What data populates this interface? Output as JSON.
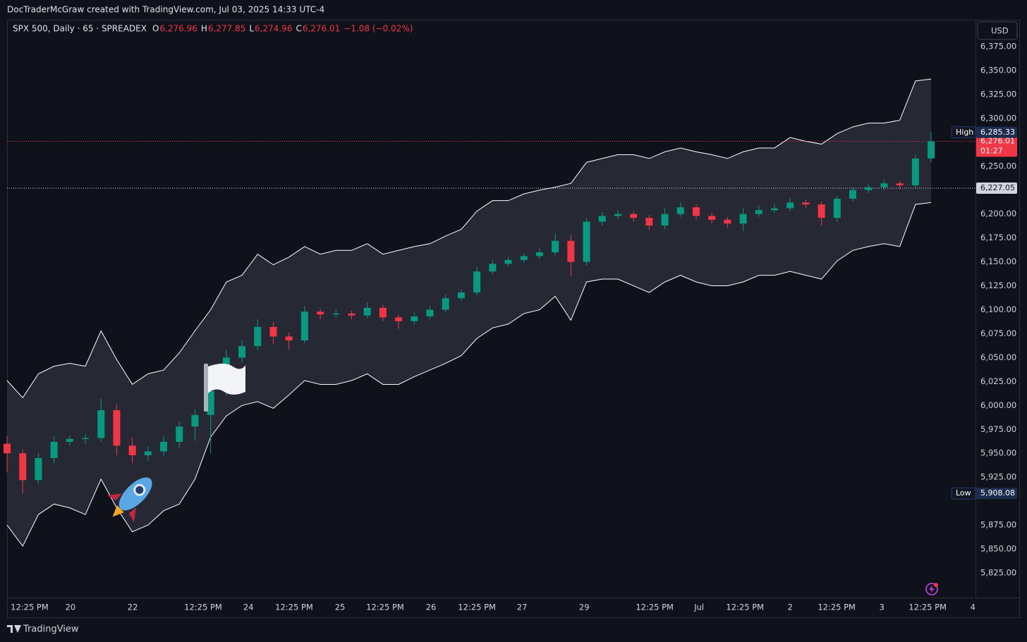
{
  "header": {
    "credit": "DocTraderMcGraw created with TradingView.com, Jul 03, 2025 14:33 UTC-4",
    "symbol": "SPX 500, Daily · 65 · SPREADEX",
    "ohlc": [
      {
        "key": "O",
        "text": "6,276.96"
      },
      {
        "key": "H",
        "text": "6,277.85"
      },
      {
        "key": "L",
        "text": "6,274.96"
      },
      {
        "key": "C",
        "text": "6,276.01"
      }
    ],
    "change": "−1.08 (−0.02%)",
    "currency": "USD"
  },
  "footer": {
    "brand": "TradingView"
  },
  "chart_data": {
    "type": "candlestick",
    "up_color": "#089981",
    "down_color": "#f23645",
    "band_color": "#ffffff",
    "xlim": [
      0,
      61.7
    ],
    "xticks": [
      {
        "value": 1.44,
        "label": "12:25 PM"
      },
      {
        "value": 4.05,
        "label": "20"
      },
      {
        "value": 8.02,
        "label": "22"
      },
      {
        "value": 12.52,
        "label": "12:25 PM"
      },
      {
        "value": 15.41,
        "label": "24"
      },
      {
        "value": 18.33,
        "label": "12:25 PM"
      },
      {
        "value": 21.26,
        "label": "25"
      },
      {
        "value": 24.14,
        "label": "12:25 PM"
      },
      {
        "value": 27.07,
        "label": "26"
      },
      {
        "value": 30.0,
        "label": "12:25 PM"
      },
      {
        "value": 32.88,
        "label": "27"
      },
      {
        "value": 36.85,
        "label": "29"
      },
      {
        "value": 41.35,
        "label": "12:25 PM"
      },
      {
        "value": 44.19,
        "label": "Jul"
      },
      {
        "value": 47.12,
        "label": "12:25 PM"
      },
      {
        "value": 50.0,
        "label": "2"
      },
      {
        "value": 52.97,
        "label": "12:25 PM"
      },
      {
        "value": 55.86,
        "label": "3"
      },
      {
        "value": 58.78,
        "label": "12:25 PM"
      },
      {
        "value": 61.67,
        "label": "4"
      }
    ],
    "ylim": [
      5825,
      6375
    ],
    "yticks": [
      {
        "value": 6375,
        "label": "6,375.00"
      },
      {
        "value": 6350,
        "label": "6,350.00"
      },
      {
        "value": 6325,
        "label": "6,325.00"
      },
      {
        "value": 6300,
        "label": "6,300.00"
      },
      {
        "value": 6250,
        "label": "6,250.00"
      },
      {
        "value": 6200,
        "label": "6,200.00"
      },
      {
        "value": 6175,
        "label": "6,175.00"
      },
      {
        "value": 6150,
        "label": "6,150.00"
      },
      {
        "value": 6125,
        "label": "6,125.00"
      },
      {
        "value": 6100,
        "label": "6,100.00"
      },
      {
        "value": 6075,
        "label": "6,075.00"
      },
      {
        "value": 6050,
        "label": "6,050.00"
      },
      {
        "value": 6025,
        "label": "6,025.00"
      },
      {
        "value": 6000,
        "label": "6,000.00"
      },
      {
        "value": 5975,
        "label": "5,975.00"
      },
      {
        "value": 5950,
        "label": "5,950.00"
      },
      {
        "value": 5925,
        "label": "5,925.00"
      },
      {
        "value": 5875,
        "label": "5,875.00"
      },
      {
        "value": 5850,
        "label": "5,850.00"
      },
      {
        "value": 5825,
        "label": "5,825.00"
      }
    ],
    "grid": false,
    "open": [
      5960,
      5950,
      5922,
      5945,
      5962,
      5965,
      5966,
      5995,
      5958,
      5948,
      5952,
      5962,
      5978,
      5990,
      6015,
      6050,
      6062,
      6082,
      6072,
      6068,
      6098,
      6095,
      6096,
      6094,
      6102,
      6092,
      6088,
      6093,
      6100,
      6112,
      6118,
      6140,
      6148,
      6152,
      6156,
      6160,
      6172,
      6150,
      6192,
      6198,
      6200,
      6196,
      6188,
      6200,
      6207,
      6198,
      6194,
      6190,
      6200,
      6204,
      6206,
      6212,
      6210,
      6196,
      6216,
      6225,
      6228,
      6232,
      6230,
      6258
    ],
    "high": [
      5968,
      5954,
      5950,
      5968,
      5968,
      5970,
      6007,
      6001,
      5966,
      5957,
      5968,
      5983,
      5996,
      6020,
      6058,
      6068,
      6090,
      6087,
      6076,
      6104,
      6101,
      6100,
      6099,
      6108,
      6105,
      6095,
      6097,
      6104,
      6116,
      6121,
      6145,
      6152,
      6155,
      6159,
      6165,
      6180,
      6178,
      6196,
      6202,
      6204,
      6203,
      6199,
      6206,
      6212,
      6210,
      6202,
      6197,
      6206,
      6209,
      6210,
      6217,
      6215,
      6213,
      6219,
      6228,
      6231,
      6236,
      6235,
      6262,
      6285.33
    ],
    "low": [
      5930,
      5908.08,
      5918,
      5940,
      5958,
      5960,
      5962,
      5948,
      5940,
      5942,
      5947,
      5956,
      5963,
      5950,
      6010,
      6045,
      6058,
      6064,
      6058,
      6065,
      6090,
      6092,
      6090,
      6091,
      6088,
      6080,
      6085,
      6090,
      6097,
      6109,
      6115,
      6137,
      6145,
      6149,
      6153,
      6157,
      6135,
      6146,
      6188,
      6195,
      6192,
      6183,
      6184,
      6197,
      6194,
      6190,
      6186,
      6182,
      6197,
      6201,
      6203,
      6206,
      6188,
      6192,
      6213,
      6222,
      6225,
      6226,
      6227,
      6254
    ],
    "close": [
      5950,
      5922,
      5945,
      5962,
      5965,
      5966,
      5995,
      5958,
      5948,
      5952,
      5962,
      5978,
      5990,
      6015,
      6050,
      6062,
      6082,
      6072,
      6068,
      6098,
      6095,
      6096,
      6094,
      6102,
      6092,
      6088,
      6093,
      6100,
      6112,
      6118,
      6140,
      6148,
      6152,
      6156,
      6160,
      6172,
      6150,
      6192,
      6198,
      6200,
      6196,
      6188,
      6200,
      6207,
      6198,
      6194,
      6190,
      6200,
      6204,
      6206,
      6212,
      6210,
      6196,
      6216,
      6225,
      6228,
      6232,
      6230,
      6258,
      6276
    ],
    "upper": [
      6026,
      6008,
      6033,
      6041,
      6044,
      6041,
      6078,
      6048,
      6022,
      6033,
      6037,
      6055,
      6078,
      6100,
      6129,
      6136,
      6158,
      6147,
      6155,
      6166,
      6158,
      6162,
      6162,
      6169,
      6158,
      6162,
      6166,
      6169,
      6177,
      6184,
      6203,
      6214,
      6214,
      6221,
      6225,
      6228,
      6232,
      6254,
      6258,
      6262,
      6262,
      6258,
      6265,
      6269,
      6265,
      6262,
      6258,
      6265,
      6269,
      6269,
      6280,
      6276,
      6273,
      6284,
      6291,
      6295,
      6295,
      6298,
      6339,
      6341
    ],
    "lower": [
      5875,
      5853,
      5886,
      5897,
      5893,
      5886,
      5923,
      5893,
      5868,
      5875,
      5890,
      5897,
      5923,
      5967,
      5989,
      6000,
      6004,
      5997,
      6011,
      6026,
      6022,
      6022,
      6026,
      6033,
      6022,
      6022,
      6030,
      6037,
      6044,
      6052,
      6070,
      6081,
      6085,
      6096,
      6100,
      6114,
      6089,
      6129,
      6132,
      6132,
      6125,
      6118,
      6129,
      6136,
      6129,
      6125,
      6125,
      6129,
      6136,
      6136,
      6140,
      6136,
      6132,
      6151,
      6162,
      6166,
      6169,
      6166,
      6210,
      6212
    ],
    "price_lines": [
      {
        "value": 6276.01,
        "label": "6,276.01",
        "countdown": "01:27",
        "color": "#f23645"
      },
      {
        "value": 6227.05,
        "label": "6,227.05",
        "color": "#d1d4dc"
      }
    ],
    "extremes": [
      {
        "name": "High",
        "value": 6285.33,
        "label": "6,285.33"
      },
      {
        "name": "Low",
        "value": 5908.08,
        "label": "5,908.08"
      }
    ]
  }
}
